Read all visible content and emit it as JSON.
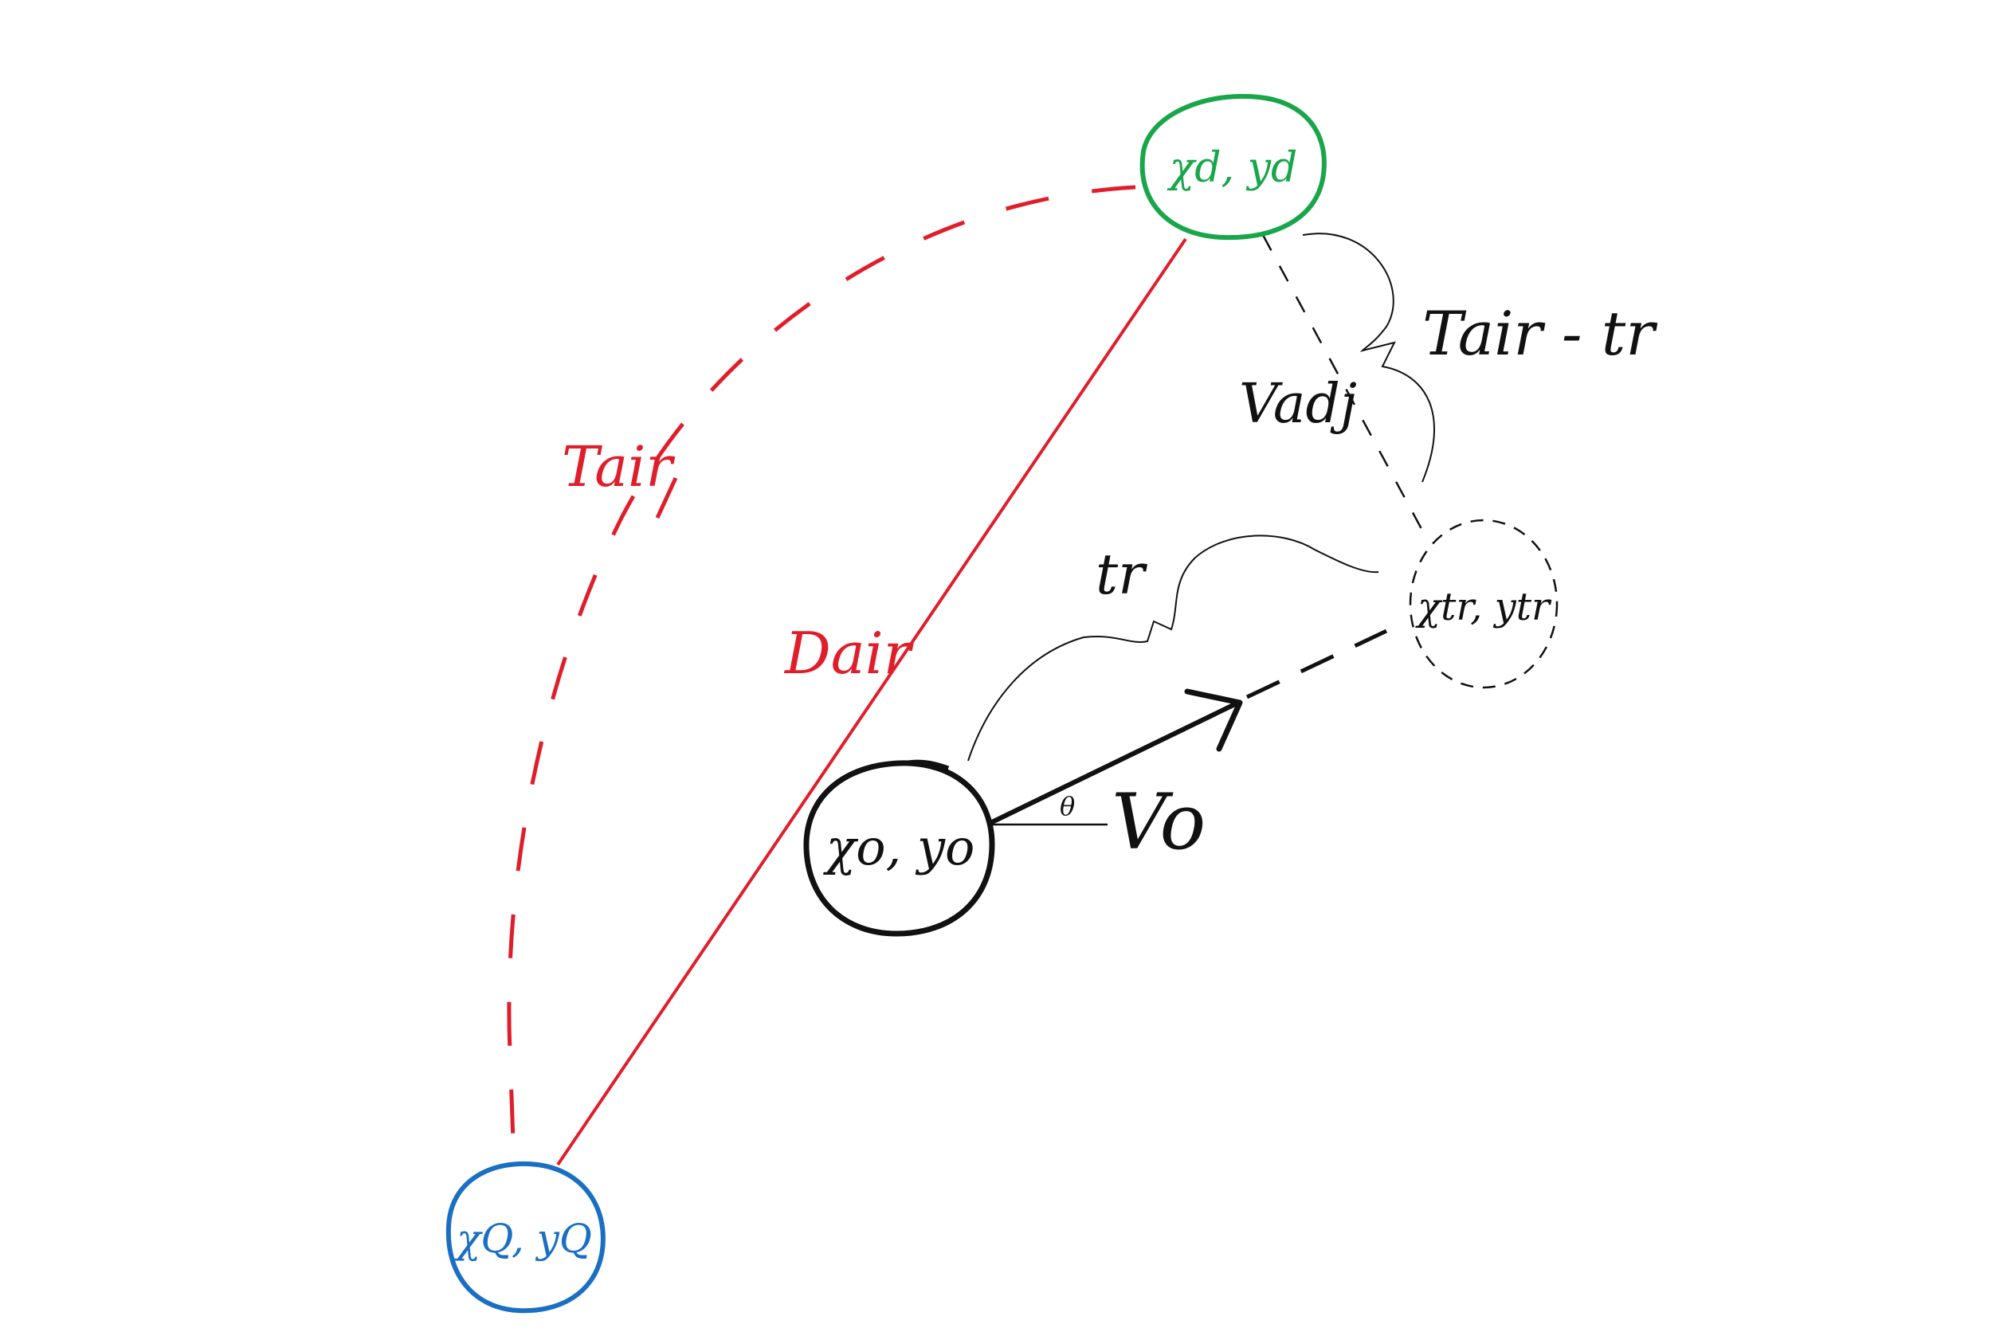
{
  "colors": {
    "red": "#e01e2b",
    "green": "#19a64a",
    "blue": "#1a6fc4",
    "black": "#111111"
  },
  "nodes": {
    "destination": {
      "label": "χd, yd",
      "color": "green"
    },
    "origin": {
      "label": "χo, yo",
      "color": "black"
    },
    "target": {
      "label": "χtr, ytr",
      "color": "black"
    },
    "start": {
      "label": "χQ, yQ",
      "color": "blue"
    }
  },
  "labels": {
    "t_air": "Tair",
    "d_air": "Dair",
    "t_air_minus_tr": "Tair - tr",
    "v_adj": "Vadj",
    "t_r": "tr",
    "v_o": "Vo",
    "theta": "θ"
  }
}
